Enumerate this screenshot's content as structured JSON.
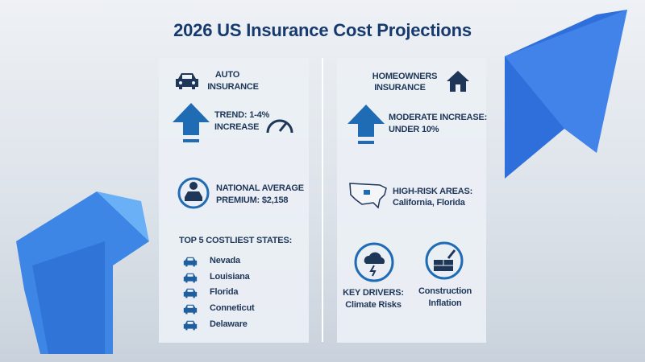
{
  "title": "2026 US Insurance Cost Projections",
  "auto": {
    "heading": [
      "AUTO",
      "INSURANCE"
    ],
    "trend": [
      "TREND: 1-4%",
      "INCREASE"
    ],
    "average": [
      "NATIONAL AVERAGE",
      "PREMIUM: $2,158"
    ],
    "states_title": "TOP 5 COSTLIEST STATES:",
    "states": [
      "Nevada",
      "Louisiana",
      "Florida",
      "Conneticut",
      "Delaware"
    ]
  },
  "homeowners": {
    "heading": [
      "HOMEOWNERS",
      "INSURANCE"
    ],
    "trend": [
      "MODERATE INCREASE:",
      "UNDER 10%"
    ],
    "risk": [
      "HIGH-RISK AREAS:",
      "California, Florida"
    ],
    "drivers": [
      [
        "KEY DRIVERS:",
        "Climate Risks"
      ],
      [
        "Construction",
        "Inflation"
      ]
    ]
  }
}
